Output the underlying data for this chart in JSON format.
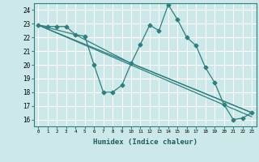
{
  "xlabel": "Humidex (Indice chaleur)",
  "bg_color": "#cce8e8",
  "grid_color": "#ffffff",
  "line_color": "#2e7f7f",
  "xlim": [
    -0.5,
    23.5
  ],
  "ylim": [
    15.5,
    24.5
  ],
  "xticks": [
    0,
    1,
    2,
    3,
    4,
    5,
    6,
    7,
    8,
    9,
    10,
    11,
    12,
    13,
    14,
    15,
    16,
    17,
    18,
    19,
    20,
    21,
    22,
    23
  ],
  "yticks": [
    16,
    17,
    18,
    19,
    20,
    21,
    22,
    23,
    24
  ],
  "series1_x": [
    0,
    1,
    2,
    3,
    4,
    5,
    6,
    7,
    8,
    9,
    10,
    11,
    12,
    13,
    14,
    15,
    16,
    17,
    18,
    19,
    20,
    21,
    22,
    23
  ],
  "series1_y": [
    22.9,
    22.8,
    22.8,
    22.8,
    22.2,
    22.1,
    20.0,
    18.0,
    18.0,
    18.5,
    20.1,
    21.5,
    22.9,
    22.5,
    24.4,
    23.3,
    22.0,
    21.4,
    19.8,
    18.7,
    17.1,
    16.0,
    16.1,
    16.5
  ],
  "series2_x": [
    0,
    4,
    10,
    23
  ],
  "series2_y": [
    22.9,
    22.2,
    20.1,
    16.5
  ],
  "series3_x": [
    0,
    23
  ],
  "series3_y": [
    22.9,
    16.5
  ],
  "series4_x": [
    0,
    23
  ],
  "series4_y": [
    22.9,
    16.2
  ]
}
